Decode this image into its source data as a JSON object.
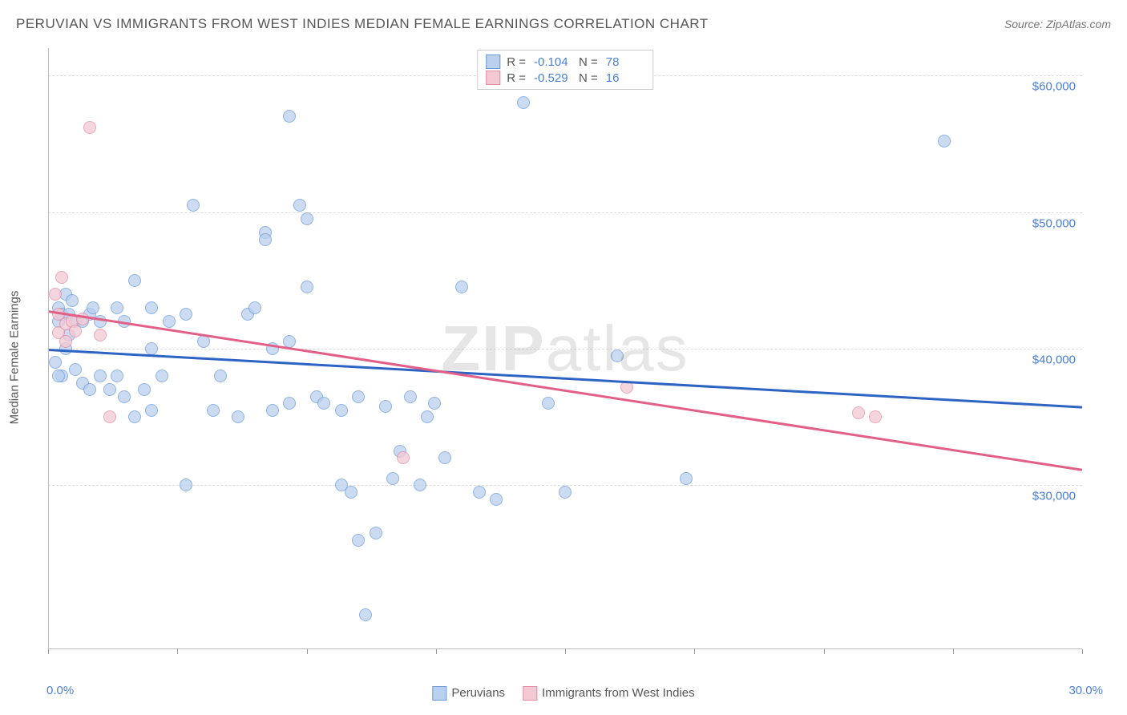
{
  "title": "PERUVIAN VS IMMIGRANTS FROM WEST INDIES MEDIAN FEMALE EARNINGS CORRELATION CHART",
  "source_prefix": "Source: ",
  "source": "ZipAtlas.com",
  "y_axis_label": "Median Female Earnings",
  "watermark_bold": "ZIP",
  "watermark_light": "atlas",
  "chart": {
    "type": "scatter",
    "background_color": "#ffffff",
    "grid_color": "#dddddd",
    "axis_color": "#bbbbbb",
    "tick_label_color": "#4a7fd8",
    "axis_label_color": "#555555",
    "xlim": [
      0,
      30
    ],
    "ylim": [
      18000,
      62000
    ],
    "x_ticks": [
      0,
      3.75,
      7.5,
      11.25,
      15,
      18.75,
      22.5,
      26.25,
      30
    ],
    "x_tick_labels": {
      "0": "0.0%",
      "30": "30.0%"
    },
    "y_ticks": [
      30000,
      40000,
      50000,
      60000
    ],
    "y_tick_labels": [
      "$30,000",
      "$40,000",
      "$50,000",
      "$60,000"
    ],
    "marker_radius": 8,
    "marker_border_width": 1,
    "label_fontsize": 15,
    "title_fontsize": 17
  },
  "series": [
    {
      "name": "Peruvians",
      "fill_color": "#b9d0ee",
      "border_color": "#6d9ad6",
      "fill_opacity": 0.75,
      "trend_color": "#2d64c4",
      "stats": {
        "R": "-0.104",
        "N": "78"
      },
      "trend": {
        "x1": 0,
        "y1": 40000,
        "x2": 30,
        "y2": 35800
      },
      "points": [
        [
          0.2,
          39000
        ],
        [
          0.3,
          43000
        ],
        [
          0.3,
          42000
        ],
        [
          0.4,
          42500
        ],
        [
          0.4,
          38000
        ],
        [
          0.5,
          44000
        ],
        [
          0.5,
          40000
        ],
        [
          0.6,
          42500
        ],
        [
          0.6,
          41000
        ],
        [
          0.7,
          43500
        ],
        [
          0.8,
          42000
        ],
        [
          0.8,
          38500
        ],
        [
          1.0,
          37500
        ],
        [
          1.0,
          42000
        ],
        [
          1.2,
          42500
        ],
        [
          1.2,
          37000
        ],
        [
          1.3,
          43000
        ],
        [
          1.5,
          38000
        ],
        [
          1.5,
          42000
        ],
        [
          1.8,
          37000
        ],
        [
          2.0,
          43000
        ],
        [
          2.0,
          38000
        ],
        [
          2.2,
          36500
        ],
        [
          2.2,
          42000
        ],
        [
          2.5,
          45000
        ],
        [
          2.5,
          35000
        ],
        [
          2.8,
          37000
        ],
        [
          3.0,
          40000
        ],
        [
          3.0,
          43000
        ],
        [
          3.0,
          35500
        ],
        [
          3.3,
          38000
        ],
        [
          3.5,
          42000
        ],
        [
          4.0,
          30000
        ],
        [
          4.0,
          42500
        ],
        [
          4.2,
          50500
        ],
        [
          4.5,
          40500
        ],
        [
          4.8,
          35500
        ],
        [
          5.0,
          38000
        ],
        [
          5.5,
          35000
        ],
        [
          5.8,
          42500
        ],
        [
          6.0,
          43000
        ],
        [
          6.3,
          48500
        ],
        [
          6.3,
          48000
        ],
        [
          6.5,
          35500
        ],
        [
          6.5,
          40000
        ],
        [
          7.0,
          57000
        ],
        [
          7.0,
          36000
        ],
        [
          7.0,
          40500
        ],
        [
          7.3,
          50500
        ],
        [
          7.5,
          49500
        ],
        [
          7.5,
          44500
        ],
        [
          7.8,
          36500
        ],
        [
          8.0,
          36000
        ],
        [
          8.5,
          35500
        ],
        [
          8.5,
          30000
        ],
        [
          8.8,
          29500
        ],
        [
          9.0,
          26000
        ],
        [
          9.0,
          36500
        ],
        [
          9.2,
          20500
        ],
        [
          9.5,
          26500
        ],
        [
          9.8,
          35800
        ],
        [
          10.0,
          30500
        ],
        [
          10.2,
          32500
        ],
        [
          10.5,
          36500
        ],
        [
          10.8,
          30000
        ],
        [
          11.0,
          35000
        ],
        [
          11.2,
          36000
        ],
        [
          11.5,
          32000
        ],
        [
          12.0,
          44500
        ],
        [
          12.5,
          29500
        ],
        [
          13.0,
          29000
        ],
        [
          13.8,
          58000
        ],
        [
          14.5,
          36000
        ],
        [
          15.0,
          29500
        ],
        [
          16.5,
          39500
        ],
        [
          18.5,
          30500
        ],
        [
          26.0,
          55200
        ],
        [
          0.3,
          38000
        ]
      ]
    },
    {
      "name": "Immigrants from West Indies",
      "fill_color": "#f4c9d4",
      "border_color": "#e18ba4",
      "fill_opacity": 0.75,
      "trend_color": "#e26088",
      "stats": {
        "R": "-0.529",
        "N": "16"
      },
      "trend": {
        "x1": 0,
        "y1": 42800,
        "x2": 30,
        "y2": 31200
      },
      "points": [
        [
          0.2,
          44000
        ],
        [
          0.3,
          41200
        ],
        [
          0.3,
          42500
        ],
        [
          0.4,
          45200
        ],
        [
          0.5,
          41800
        ],
        [
          0.5,
          40500
        ],
        [
          0.7,
          42000
        ],
        [
          0.8,
          41300
        ],
        [
          1.0,
          42200
        ],
        [
          1.2,
          56200
        ],
        [
          1.5,
          41000
        ],
        [
          1.8,
          35000
        ],
        [
          10.3,
          32000
        ],
        [
          16.8,
          37200
        ],
        [
          23.5,
          35300
        ],
        [
          24.0,
          35000
        ]
      ]
    }
  ],
  "legend_top": {
    "r_label": "R =",
    "n_label": "N ="
  },
  "legend_bottom": {
    "items": [
      "Peruvians",
      "Immigrants from West Indies"
    ]
  }
}
